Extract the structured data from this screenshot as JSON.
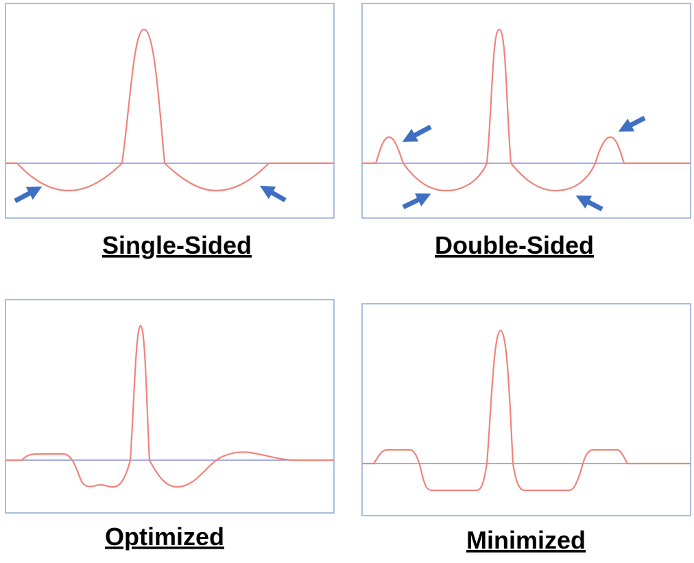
{
  "panels": [
    {
      "label": "Single-Sided"
    },
    {
      "label": "Double-Sided"
    },
    {
      "label": "Optimized"
    },
    {
      "label": "Minimized"
    }
  ]
}
